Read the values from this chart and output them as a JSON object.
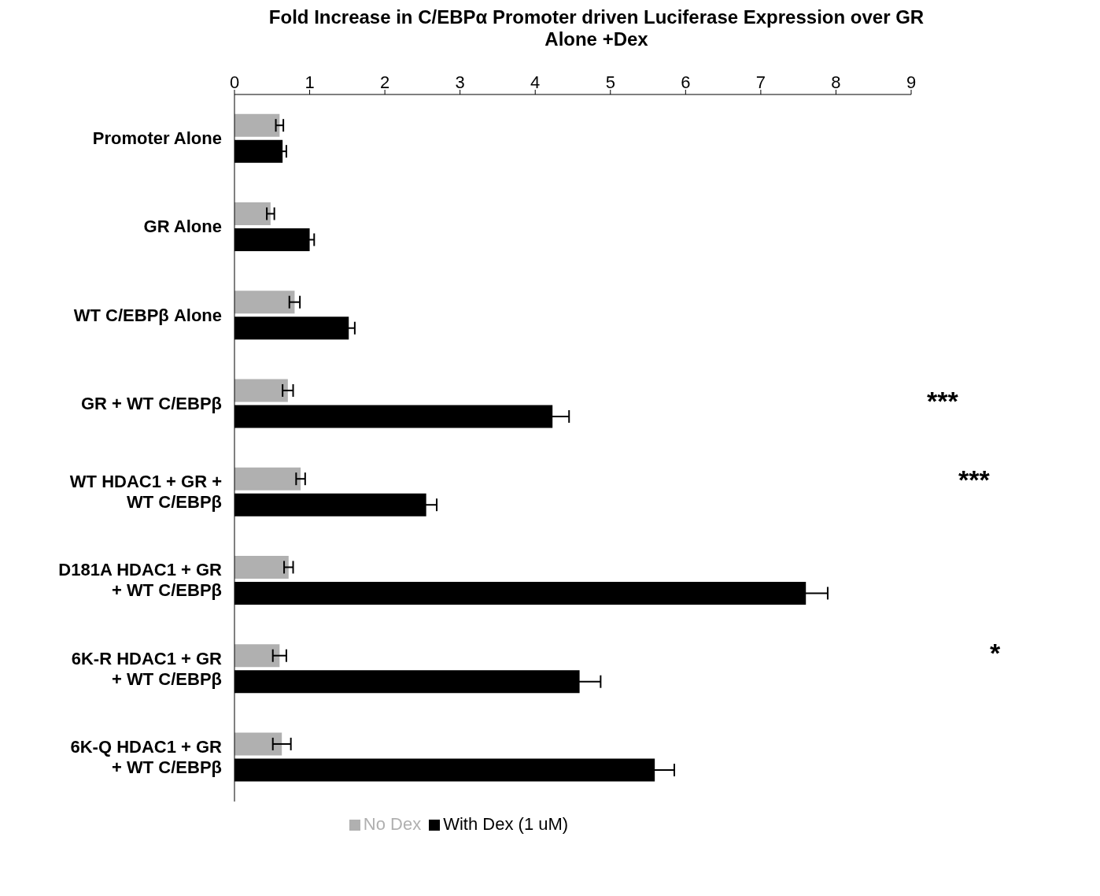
{
  "chart_data": {
    "type": "bar",
    "orientation": "horizontal",
    "title": "Fold Increase in C/EBPα Promoter driven Luciferase Expression over GR Alone +Dex",
    "categories": [
      "Promoter Alone",
      "GR Alone",
      "WT C/EBPβ Alone",
      "GR + WT C/EBPβ",
      "WT HDAC1 + GR + WT C/EBPβ",
      "D181A HDAC1 + GR + WT C/EBPβ",
      "6K-R HDAC1 + GR + WT C/EBPβ",
      "6K-Q HDAC1 + GR + WT C/EBPβ"
    ],
    "series": [
      {
        "name": "No Dex",
        "color": "#b0b0b0",
        "values": [
          0.6,
          0.48,
          0.8,
          0.71,
          0.88,
          0.72,
          0.6,
          0.63
        ],
        "errors": [
          0.05,
          0.05,
          0.07,
          0.07,
          0.06,
          0.06,
          0.09,
          0.12
        ]
      },
      {
        "name": "With Dex (1 uM)",
        "color": "#000000",
        "values": [
          0.64,
          1.0,
          1.52,
          4.23,
          2.55,
          7.6,
          4.59,
          5.59
        ],
        "errors": [
          0.05,
          0.06,
          0.08,
          0.22,
          0.14,
          0.29,
          0.28,
          0.26
        ]
      }
    ],
    "xlim": [
      0,
      9
    ],
    "xticks": [
      0,
      1,
      2,
      3,
      4,
      5,
      6,
      7,
      8,
      9
    ],
    "grid": false,
    "legend": "bottom",
    "annotations": [
      "***",
      "***",
      "*"
    ]
  }
}
